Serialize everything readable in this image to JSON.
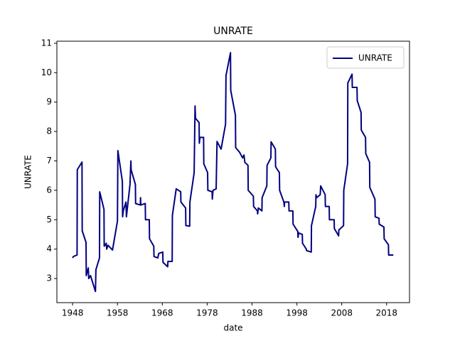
{
  "chart_data": {
    "type": "line",
    "title": "UNRATE",
    "x_label": "date",
    "y_label": "UNRATE",
    "x": [
      1948.0,
      1948.2,
      1949.0,
      1949.05,
      1950.1,
      1950.15,
      1951.0,
      1951.05,
      1951.5,
      1951.6,
      1952.0,
      1953.1,
      1953.2,
      1954.0,
      1954.05,
      1955.0,
      1955.05,
      1955.5,
      1955.6,
      1955.9,
      1956.9,
      1958.0,
      1958.1,
      1959.1,
      1959.15,
      1959.3,
      1959.9,
      1960.0,
      1960.8,
      1961.0,
      1961.05,
      1962.0,
      1962.05,
      1963.1,
      1963.15,
      1963.2,
      1964.2,
      1964.25,
      1965.1,
      1965.15,
      1966.1,
      1966.15,
      1967.0,
      1967.2,
      1968.1,
      1968.15,
      1969.2,
      1969.25,
      1970.2,
      1970.25,
      1971.1,
      1972.1,
      1972.15,
      1973.2,
      1973.25,
      1974.1,
      1974.15,
      1975.1,
      1975.3,
      1975.4,
      1976.2,
      1976.25,
      1976.4,
      1977.2,
      1977.25,
      1978.1,
      1978.15,
      1979.1,
      1979.15,
      1979.3,
      1980.0,
      1980.2,
      1981.1,
      1982.1,
      1982.2,
      1983.2,
      1983.25,
      1984.3,
      1984.35,
      1985.2,
      1985.9,
      1986.2,
      1986.4,
      1987.1,
      1987.15,
      1988.3,
      1988.35,
      1989.2,
      1989.25,
      1989.4,
      1990.2,
      1990.25,
      1991.3,
      1991.35,
      1992.2,
      1992.25,
      1993.2,
      1993.25,
      1994.1,
      1994.15,
      1995.1,
      1995.2,
      1995.25,
      1996.2,
      1996.25,
      1997.1,
      1997.15,
      1998.2,
      1998.25,
      1998.4,
      1999.2,
      1999.25,
      2000.1,
      2000.15,
      2001.2,
      2001.25,
      2002.2,
      2002.25,
      2002.4,
      2003.2,
      2003.3,
      2004.3,
      2004.35,
      2005.2,
      2005.25,
      2006.3,
      2006.35,
      2007.3,
      2007.35,
      2008.4,
      2008.45,
      2009.3,
      2009.35,
      2010.3,
      2010.35,
      2011.4,
      2011.45,
      2012.3,
      2012.35,
      2013.3,
      2013.35,
      2014.2,
      2014.25,
      2015.4,
      2015.45,
      2016.3,
      2016.35,
      2017.4,
      2017.45,
      2018.4,
      2018.45,
      2019.5
    ],
    "series": [
      {
        "name": "UNRATE",
        "color": "#000080",
        "values": [
          3.7,
          3.75,
          3.8,
          6.7,
          6.96,
          4.62,
          4.23,
          3.1,
          3.36,
          3.0,
          3.1,
          2.56,
          3.3,
          3.7,
          5.95,
          5.35,
          4.1,
          4.2,
          4.0,
          4.13,
          3.97,
          4.95,
          7.35,
          6.3,
          5.1,
          5.3,
          5.6,
          5.1,
          6.2,
          7.0,
          6.7,
          6.2,
          5.55,
          5.5,
          5.75,
          5.5,
          5.55,
          5.0,
          5.0,
          4.35,
          4.1,
          3.75,
          3.7,
          3.85,
          3.9,
          3.55,
          3.4,
          3.58,
          3.58,
          5.15,
          6.05,
          5.95,
          5.6,
          5.4,
          4.8,
          4.78,
          5.6,
          6.6,
          8.87,
          8.45,
          8.3,
          7.6,
          7.8,
          7.8,
          6.9,
          6.6,
          6.0,
          5.95,
          5.7,
          6.0,
          6.05,
          7.66,
          7.4,
          8.25,
          9.9,
          10.68,
          9.4,
          8.55,
          7.45,
          7.3,
          7.1,
          7.2,
          6.95,
          6.85,
          6.0,
          5.8,
          5.45,
          5.3,
          5.2,
          5.4,
          5.3,
          5.75,
          6.15,
          6.85,
          7.1,
          7.65,
          7.4,
          6.8,
          6.6,
          6.0,
          5.6,
          5.45,
          5.6,
          5.6,
          5.3,
          5.3,
          4.85,
          4.6,
          4.4,
          4.55,
          4.5,
          4.2,
          4.0,
          3.95,
          3.9,
          4.8,
          5.45,
          5.85,
          5.75,
          5.85,
          6.15,
          5.85,
          5.45,
          5.45,
          5.0,
          5.0,
          4.7,
          4.45,
          4.65,
          4.8,
          6.0,
          6.9,
          9.65,
          9.95,
          9.5,
          9.5,
          9.05,
          8.65,
          8.05,
          7.8,
          7.25,
          6.95,
          6.1,
          5.7,
          5.1,
          5.05,
          4.85,
          4.75,
          4.35,
          4.15,
          3.8,
          3.8
        ]
      }
    ],
    "xlim": [
      1944.5,
      2023.1
    ],
    "xticks": [
      1948,
      1958,
      1968,
      1978,
      1988,
      1998,
      2008,
      2018
    ],
    "ylim": [
      2.18,
      11.07
    ],
    "yticks": [
      3,
      4,
      5,
      6,
      7,
      8,
      9,
      10,
      11
    ],
    "grid": false,
    "legend": "upper right"
  }
}
